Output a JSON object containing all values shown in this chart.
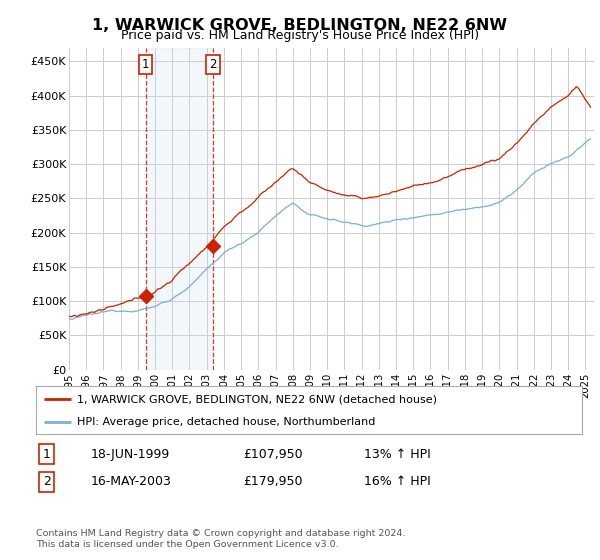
{
  "title": "1, WARWICK GROVE, BEDLINGTON, NE22 6NW",
  "subtitle": "Price paid vs. HM Land Registry's House Price Index (HPI)",
  "ylim": [
    0,
    470000
  ],
  "xlim_start": 1995.0,
  "xlim_end": 2025.5,
  "sale1_date": 1999.46,
  "sale1_price": 107950,
  "sale1_label": "1",
  "sale1_text": "18-JUN-1999",
  "sale1_amount": "£107,950",
  "sale1_hpi": "13% ↑ HPI",
  "sale2_date": 2003.37,
  "sale2_price": 179950,
  "sale2_label": "2",
  "sale2_text": "16-MAY-2003",
  "sale2_amount": "£179,950",
  "sale2_hpi": "16% ↑ HPI",
  "legend_line1": "1, WARWICK GROVE, BEDLINGTON, NE22 6NW (detached house)",
  "legend_line2": "HPI: Average price, detached house, Northumberland",
  "footer": "Contains HM Land Registry data © Crown copyright and database right 2024.\nThis data is licensed under the Open Government Licence v3.0.",
  "hpi_color": "#7bafd4",
  "property_color": "#cc2200",
  "background_color": "#ffffff",
  "plot_bg_color": "#ffffff",
  "grid_color": "#cccccc",
  "highlight_color": "#ddeeff"
}
